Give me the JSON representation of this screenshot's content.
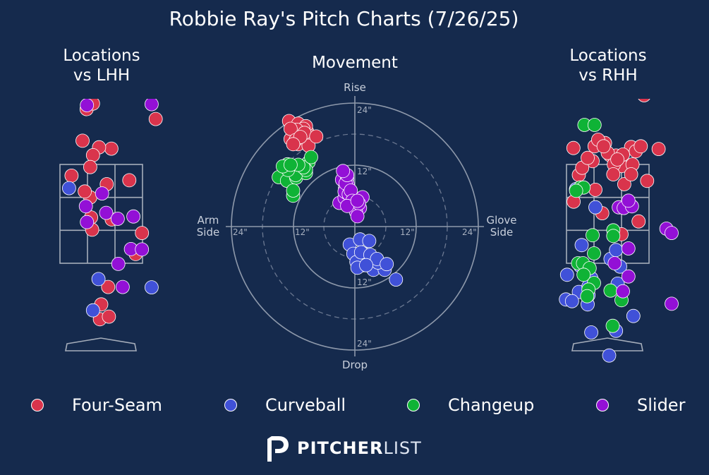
{
  "title": "Robbie Ray's Pitch Charts (7/26/25)",
  "panels": {
    "lhh_title": "Locations\nvs LHH",
    "movement_title": "Movement",
    "rhh_title": "Locations\nvs RHH"
  },
  "movement_labels": {
    "top": "Rise",
    "bottom": "Drop",
    "left": "Arm\nSide",
    "right": "Glove\nSide",
    "ring_inner": "12\"",
    "ring_outer": "24\""
  },
  "colors": {
    "background": "#152a4d",
    "Four-Seam": "#d9344c",
    "Curveball": "#4051d8",
    "Changeup": "#0fb336",
    "Slider": "#9310d6"
  },
  "legend": [
    {
      "name": "Four-Seam",
      "color": "#d9344c"
    },
    {
      "name": "Curveball",
      "color": "#4051d8"
    },
    {
      "name": "Changeup",
      "color": "#0fb336"
    },
    {
      "name": "Slider",
      "color": "#9310d6"
    }
  ],
  "brand": {
    "bold": "PITCHER",
    "light": "LIST",
    "logo": "pitcherlist-p-logo"
  },
  "chart_data": [
    {
      "type": "scatter",
      "title": "Locations vs LHH",
      "units": "zone widths (x: -1.5 glove..1.5, y: 0 bottom..3 top of zone)",
      "series": [
        {
          "name": "Four-Seam",
          "points": [
            [
              0.37,
              3.48
            ],
            [
              -0.37,
              1.39
            ],
            [
              0.38,
              1.33
            ],
            [
              -0.68,
              3.72
            ],
            [
              -0.08,
              3.52
            ],
            [
              -0.53,
              4.68
            ],
            [
              -0.3,
              4.85
            ],
            [
              1.98,
              4.38
            ],
            [
              -0.3,
              3.28
            ],
            [
              1.02,
              2.52
            ],
            [
              -0.4,
              2.92
            ],
            [
              1.48,
              0.92
            ],
            [
              -1.08,
              2.66
            ],
            [
              -0.4,
              2.0
            ],
            [
              0.2,
              2.4
            ],
            [
              -0.33,
              1.02
            ],
            [
              -0.6,
              2.18
            ],
            [
              1.25,
              0.28
            ],
            [
              0.25,
              -0.72
            ],
            [
              -0.05,
              -1.7
            ],
            [
              0.0,
              -1.25
            ],
            [
              0.28,
              -1.62
            ]
          ]
        },
        {
          "name": "Curveball",
          "points": [
            [
              -1.17,
              2.28
            ],
            [
              -0.1,
              -0.48
            ],
            [
              1.83,
              -0.73
            ],
            [
              -0.3,
              -1.43
            ]
          ]
        },
        {
          "name": "Changeup",
          "points": []
        },
        {
          "name": "Slider",
          "points": [
            [
              -0.52,
              4.8
            ],
            [
              1.83,
              4.83
            ],
            [
              -0.56,
              1.73
            ],
            [
              0.03,
              2.12
            ],
            [
              -0.52,
              1.25
            ],
            [
              0.18,
              1.53
            ],
            [
              1.17,
              1.42
            ],
            [
              0.6,
              1.35
            ],
            [
              1.08,
              0.43
            ],
            [
              1.48,
              0.42
            ],
            [
              0.62,
              -0.02
            ],
            [
              0.78,
              -0.72
            ]
          ]
        }
      ]
    },
    {
      "type": "scatter",
      "title": "Movement",
      "units": "inches (x: glove side +, y: rise +)",
      "rings": [
        12,
        24
      ],
      "series": [
        {
          "name": "Four-Seam",
          "points": [
            [
              -12.8,
              20.5
            ],
            [
              -11.0,
              20.0
            ],
            [
              -9.3,
              18.5
            ],
            [
              -9.0,
              17.0
            ],
            [
              -10.5,
              18.0
            ],
            [
              -12.0,
              17.5
            ],
            [
              -12.0,
              18.5
            ],
            [
              -9.5,
              19.5
            ],
            [
              -8.5,
              17.5
            ],
            [
              -10.0,
              19.0
            ],
            [
              -12.5,
              17.0
            ],
            [
              -11.0,
              16.0
            ],
            [
              -9.0,
              15.7
            ],
            [
              -11.3,
              18.8
            ],
            [
              -12.5,
              19.0
            ],
            [
              -9.8,
              18.2
            ],
            [
              -11.5,
              16.8
            ],
            [
              -10.6,
              17.4
            ],
            [
              -7.5,
              17.5
            ],
            [
              -12.0,
              16.0
            ]
          ]
        },
        {
          "name": "Curveball",
          "points": [
            [
              -1.0,
              -3.5
            ],
            [
              1.0,
              -2.5
            ],
            [
              2.8,
              -2.8
            ],
            [
              1.8,
              -5.3
            ],
            [
              -0.3,
              -5.3
            ],
            [
              1.5,
              -7.5
            ],
            [
              2.5,
              -6.7
            ],
            [
              0.3,
              -6.9
            ],
            [
              3.6,
              -8.4
            ],
            [
              5.8,
              -8.4
            ],
            [
              4.5,
              -7.0
            ],
            [
              1.2,
              -5.0
            ],
            [
              0.5,
              -8.0
            ],
            [
              3.0,
              -5.5
            ],
            [
              4.3,
              -6.3
            ],
            [
              6.2,
              -7.3
            ],
            [
              8.0,
              -10.3
            ],
            [
              2.2,
              -7.5
            ]
          ]
        },
        {
          "name": "Changeup",
          "points": [
            [
              -14.8,
              9.6
            ],
            [
              -13.2,
              8.9
            ],
            [
              -11.4,
              9.5
            ],
            [
              -9.5,
              10.4
            ],
            [
              -13.1,
              12.1
            ],
            [
              -10.5,
              11.8
            ],
            [
              -9.0,
              12.5
            ],
            [
              -11.5,
              10.0
            ],
            [
              -13.0,
              11.0
            ],
            [
              -9.5,
              11.0
            ],
            [
              -12.0,
              6.0
            ],
            [
              -12.0,
              7.0
            ],
            [
              -10.0,
              11.5
            ],
            [
              -14.0,
              11.7
            ],
            [
              -11.0,
              12.0
            ],
            [
              -8.5,
              13.5
            ],
            [
              -12.5,
              12.0
            ]
          ]
        },
        {
          "name": "Slider",
          "points": [
            [
              -2.5,
              9.1
            ],
            [
              -1.7,
              5.2
            ],
            [
              0.2,
              3.6
            ],
            [
              -3.0,
              4.6
            ],
            [
              -1.2,
              4.1
            ],
            [
              1.5,
              5.7
            ],
            [
              1.0,
              3.6
            ],
            [
              -1.5,
              9.3
            ],
            [
              0.5,
              4.3
            ],
            [
              0.2,
              2.9
            ],
            [
              -2.0,
              5.6
            ],
            [
              -1.7,
              6.6
            ],
            [
              -1.9,
              7.5
            ],
            [
              -1.4,
              8.2
            ],
            [
              -2.0,
              6.8
            ],
            [
              -1.2,
              6.3
            ],
            [
              -1.8,
              8.4
            ],
            [
              -1.5,
              10.0
            ],
            [
              -0.8,
              7.0
            ],
            [
              -0.5,
              5.0
            ],
            [
              0.8,
              4.5
            ],
            [
              -2.3,
              10.8
            ],
            [
              0.5,
              2.0
            ],
            [
              -1.5,
              4.0
            ],
            [
              0.5,
              5.0
            ]
          ]
        }
      ]
    },
    {
      "type": "scatter",
      "title": "Locations vs RHH",
      "units": "zone widths (x: -1.5 glove..1.5, y: 0 bottom..3 top of zone)",
      "series": [
        {
          "name": "Four-Seam",
          "points": [
            [
              1.32,
              5.1
            ],
            [
              1.12,
              1.27
            ],
            [
              -1.15,
              2.25
            ],
            [
              -0.48,
              3.55
            ],
            [
              0.08,
              3.28
            ],
            [
              1.85,
              3.47
            ],
            [
              -1.05,
              2.68
            ],
            [
              0.5,
              0.88
            ],
            [
              -0.2,
              1.52
            ],
            [
              -1.25,
              3.5
            ],
            [
              0.3,
              3.27
            ],
            [
              0.5,
              2.95
            ],
            [
              0.85,
              3.53
            ],
            [
              0.6,
              2.4
            ],
            [
              0.9,
              3.0
            ],
            [
              1.02,
              3.4
            ],
            [
              0.85,
              2.7
            ],
            [
              1.2,
              3.55
            ],
            [
              -0.1,
              3.65
            ],
            [
              0.0,
              3.35
            ],
            [
              -0.55,
              3.1
            ],
            [
              -0.35,
              3.75
            ],
            [
              -0.15,
              3.55
            ],
            [
              0.22,
              3.0
            ],
            [
              0.55,
              3.3
            ],
            [
              0.35,
              3.15
            ],
            [
              0.2,
              2.7
            ],
            [
              1.43,
              2.5
            ],
            [
              -0.93,
              2.9
            ],
            [
              -1.24,
              1.87
            ],
            [
              -0.45,
              2.23
            ],
            [
              -0.73,
              3.2
            ]
          ]
        },
        {
          "name": "Curveball",
          "points": [
            [
              -1.15,
              2.25
            ],
            [
              -0.45,
              1.7
            ],
            [
              0.36,
              -0.62
            ],
            [
              0.1,
              0.13
            ],
            [
              -0.6,
              -0.45
            ],
            [
              -1.48,
              -0.35
            ],
            [
              -1.52,
              -1.1
            ],
            [
              -1.0,
              -0.08
            ],
            [
              -1.05,
              -0.87
            ],
            [
              -0.73,
              -1.25
            ],
            [
              -0.7,
              -0.7
            ],
            [
              -0.95,
              0.55
            ],
            [
              0.93,
              -1.6
            ],
            [
              0.3,
              -2.05
            ],
            [
              -0.6,
              -2.1
            ],
            [
              -1.3,
              -1.15
            ],
            [
              0.3,
              0.4
            ],
            [
              0.05,
              -2.8
            ],
            [
              -0.7,
              -0.97
            ],
            [
              0.45,
              -0.1
            ]
          ]
        },
        {
          "name": "Changeup",
          "points": [
            [
              -0.85,
              4.2
            ],
            [
              -0.55,
              0.85
            ],
            [
              -0.5,
              0.3
            ],
            [
              -1.08,
              0.0
            ],
            [
              -0.9,
              0.0
            ],
            [
              -0.66,
              -0.15
            ],
            [
              0.2,
              1.0
            ],
            [
              0.2,
              0.83
            ],
            [
              0.1,
              -0.83
            ],
            [
              0.5,
              -1.12
            ],
            [
              0.18,
              -1.9
            ],
            [
              -0.88,
              -0.35
            ],
            [
              -1.0,
              2.3
            ],
            [
              -0.88,
              2.3
            ],
            [
              -1.15,
              2.2
            ],
            [
              -0.48,
              4.2
            ],
            [
              -0.5,
              -0.6
            ],
            [
              -0.7,
              -0.8
            ],
            [
              -0.75,
              -1.0
            ]
          ]
        },
        {
          "name": "Slider",
          "points": [
            [
              0.75,
              0.45
            ],
            [
              0.4,
              1.7
            ],
            [
              0.58,
              1.68
            ],
            [
              0.88,
              1.73
            ],
            [
              0.75,
              1.9
            ],
            [
              0.25,
              0.0
            ],
            [
              0.75,
              -0.4
            ],
            [
              0.55,
              -0.85
            ],
            [
              2.13,
              1.05
            ],
            [
              2.32,
              0.92
            ],
            [
              2.32,
              -1.23
            ]
          ]
        }
      ]
    }
  ]
}
